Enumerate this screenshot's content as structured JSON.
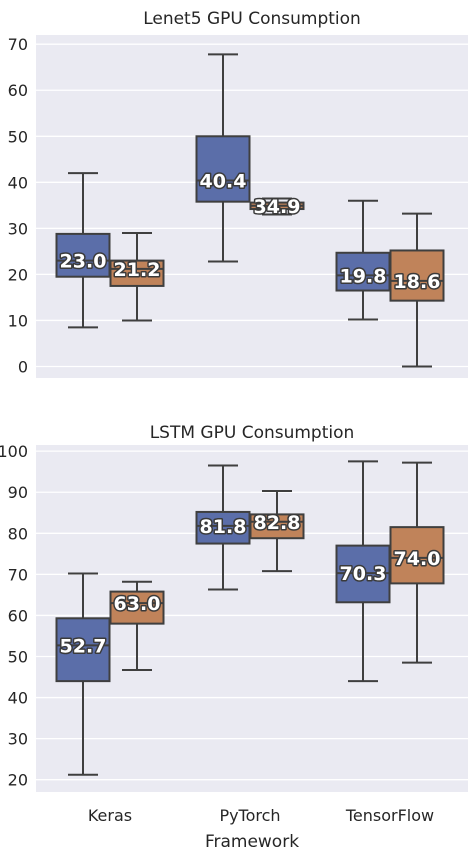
{
  "chart_data": [
    {
      "type": "box",
      "title": "Lenet5 GPU Consumption",
      "xlabel": "",
      "ylabel": "",
      "ylim": [
        -2.5,
        72
      ],
      "yticks": [
        0,
        10,
        20,
        30,
        40,
        50,
        60,
        70
      ],
      "grid": true,
      "categories": [
        "Keras",
        "PyTorch",
        "TensorFlow"
      ],
      "boxes": [
        {
          "category": "Keras",
          "color": "#5b6ea9",
          "min": 8.5,
          "q1": 19.5,
          "median": 23.0,
          "q3": 28.8,
          "max": 42.0,
          "label": "23.0"
        },
        {
          "category": "Keras",
          "color": "#c0835a",
          "min": 10.0,
          "q1": 17.5,
          "median": 21.2,
          "q3": 23.0,
          "max": 29.0,
          "label": "21.2"
        },
        {
          "category": "PyTorch",
          "color": "#5b6ea9",
          "min": 22.8,
          "q1": 35.8,
          "median": 40.4,
          "q3": 50.0,
          "max": 67.8,
          "label": "40.4"
        },
        {
          "category": "PyTorch",
          "color": "#c0835a",
          "min": 33.0,
          "q1": 34.2,
          "median": 34.9,
          "q3": 35.6,
          "max": 36.5,
          "label": "34.9"
        },
        {
          "category": "TensorFlow",
          "color": "#5b6ea9",
          "min": 10.2,
          "q1": 16.5,
          "median": 19.8,
          "q3": 24.7,
          "max": 36.0,
          "label": "19.8"
        },
        {
          "category": "TensorFlow",
          "color": "#c0835a",
          "min": 0.0,
          "q1": 14.3,
          "median": 18.6,
          "q3": 25.2,
          "max": 33.2,
          "label": "18.6"
        }
      ]
    },
    {
      "type": "box",
      "title": "LSTM GPU Consumption",
      "xlabel": "Framework",
      "ylabel": "",
      "ylim": [
        17,
        101.5
      ],
      "yticks": [
        20,
        30,
        40,
        50,
        60,
        70,
        80,
        90,
        100
      ],
      "grid": true,
      "categories": [
        "Keras",
        "PyTorch",
        "TensorFlow"
      ],
      "boxes": [
        {
          "category": "Keras",
          "color": "#5b6ea9",
          "min": 21.2,
          "q1": 44.0,
          "median": 52.7,
          "q3": 59.3,
          "max": 70.2,
          "label": "52.7"
        },
        {
          "category": "Keras",
          "color": "#c0835a",
          "min": 46.7,
          "q1": 58.0,
          "median": 63.0,
          "q3": 65.8,
          "max": 68.2,
          "label": "63.0"
        },
        {
          "category": "PyTorch",
          "color": "#5b6ea9",
          "min": 66.3,
          "q1": 77.5,
          "median": 81.8,
          "q3": 85.2,
          "max": 96.5,
          "label": "81.8"
        },
        {
          "category": "PyTorch",
          "color": "#c0835a",
          "min": 70.8,
          "q1": 78.8,
          "median": 82.8,
          "q3": 84.6,
          "max": 90.3,
          "label": "82.8"
        },
        {
          "category": "TensorFlow",
          "color": "#5b6ea9",
          "min": 44.0,
          "q1": 63.2,
          "median": 70.3,
          "q3": 77.0,
          "max": 97.5,
          "label": "70.3"
        },
        {
          "category": "TensorFlow",
          "color": "#c0835a",
          "min": 48.5,
          "q1": 67.8,
          "median": 74.0,
          "q3": 81.5,
          "max": 97.2,
          "label": "74.0"
        }
      ]
    }
  ]
}
